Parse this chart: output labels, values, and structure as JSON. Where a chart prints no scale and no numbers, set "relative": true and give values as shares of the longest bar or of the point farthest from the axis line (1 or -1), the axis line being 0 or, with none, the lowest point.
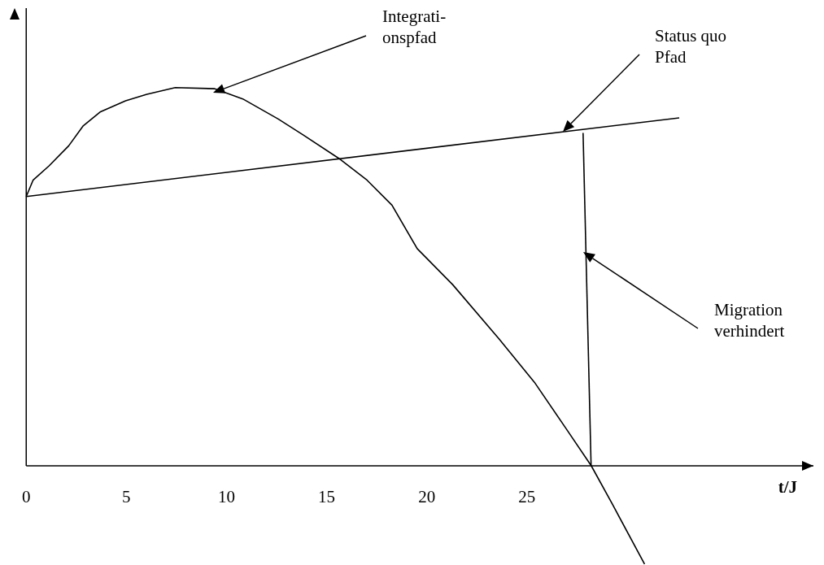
{
  "chart_data": {
    "type": "line",
    "relative": true,
    "xlabel": "t/J",
    "xlim": [
      0,
      39.3
    ],
    "xticks": [
      0,
      5,
      10,
      15,
      20,
      25
    ],
    "grid": false,
    "legend": false,
    "marker": "none",
    "line_style": "solid",
    "series": [
      {
        "color": "#000000",
        "x": [
          0,
          0.34,
          1.14,
          2.12,
          2.83,
          3.71,
          4.96,
          6.02,
          7.44,
          9.39,
          10.81,
          12.58,
          13.82,
          15.6,
          17.02,
          18.26,
          19.52,
          21.29,
          23.6,
          25.37,
          26.97,
          28.21,
          29.28,
          30.87
        ],
        "values": [
          0.712,
          0.755,
          0.793,
          0.846,
          0.898,
          0.936,
          0.965,
          0.982,
          1.0,
          0.997,
          0.97,
          0.917,
          0.875,
          0.813,
          0.755,
          0.689,
          0.574,
          0.479,
          0.336,
          0.221,
          0.097,
          0,
          -0.103,
          -0.26
        ]
      },
      {
        "color": "#000000",
        "x": [
          0,
          32.6
        ],
        "values": [
          0.712,
          0.92
        ]
      },
      {
        "color": "#000000",
        "x": [
          27.8,
          28.2
        ],
        "values": [
          0.88,
          0
        ]
      }
    ],
    "annotations": [
      "Integrati-\nonspfad",
      "Status quo\nPfad",
      "Migration\nverhindert"
    ]
  }
}
